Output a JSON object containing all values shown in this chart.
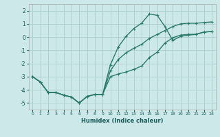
{
  "xlabel": "Humidex (Indice chaleur)",
  "background_color": "#cce8e8",
  "grid_color": "#aacccc",
  "line_color": "#2a7a6a",
  "xlim": [
    -0.5,
    23.5
  ],
  "ylim": [
    -5.5,
    2.5
  ],
  "yticks": [
    -5,
    -4,
    -3,
    -2,
    -1,
    0,
    1,
    2
  ],
  "xticks": [
    0,
    1,
    2,
    3,
    4,
    5,
    6,
    7,
    8,
    9,
    10,
    11,
    12,
    13,
    14,
    15,
    16,
    17,
    18,
    19,
    20,
    21,
    22,
    23
  ],
  "line_spike_x": [
    0,
    1,
    2,
    3,
    4,
    5,
    6,
    7,
    8,
    9,
    10,
    11,
    12,
    13,
    14,
    15,
    16,
    17,
    18,
    19,
    20,
    21,
    22,
    23
  ],
  "line_spike_y": [
    -3.0,
    -3.4,
    -4.2,
    -4.2,
    -4.4,
    -4.55,
    -5.0,
    -4.5,
    -4.35,
    -4.35,
    -2.1,
    -0.75,
    0.05,
    0.65,
    1.05,
    1.75,
    1.65,
    0.8,
    -0.25,
    0.05,
    0.15,
    0.2,
    0.38,
    0.42
  ],
  "line_low_x": [
    0,
    1,
    2,
    3,
    4,
    5,
    6,
    7,
    8,
    9,
    10,
    11,
    12,
    13,
    14,
    15,
    16,
    17,
    18,
    19,
    20,
    21,
    22,
    23
  ],
  "line_low_y": [
    -3.0,
    -3.4,
    -4.2,
    -4.2,
    -4.4,
    -4.55,
    -5.0,
    -4.5,
    -4.35,
    -4.35,
    -3.0,
    -2.8,
    -2.65,
    -2.45,
    -2.2,
    -1.55,
    -1.15,
    -0.45,
    -0.05,
    0.15,
    0.2,
    0.22,
    0.38,
    0.42
  ],
  "line_mid_x": [
    0,
    1,
    2,
    3,
    4,
    5,
    6,
    7,
    8,
    9,
    10,
    11,
    12,
    13,
    14,
    15,
    16,
    17,
    18,
    19,
    20,
    21,
    22,
    23
  ],
  "line_mid_y": [
    -3.0,
    -3.4,
    -4.2,
    -4.2,
    -4.4,
    -4.55,
    -5.0,
    -4.5,
    -4.35,
    -4.35,
    -2.55,
    -1.7,
    -1.2,
    -0.85,
    -0.55,
    -0.1,
    0.2,
    0.5,
    0.8,
    1.0,
    1.05,
    1.05,
    1.1,
    1.15
  ],
  "marker": "+",
  "markersize": 3,
  "linewidth": 1.0
}
